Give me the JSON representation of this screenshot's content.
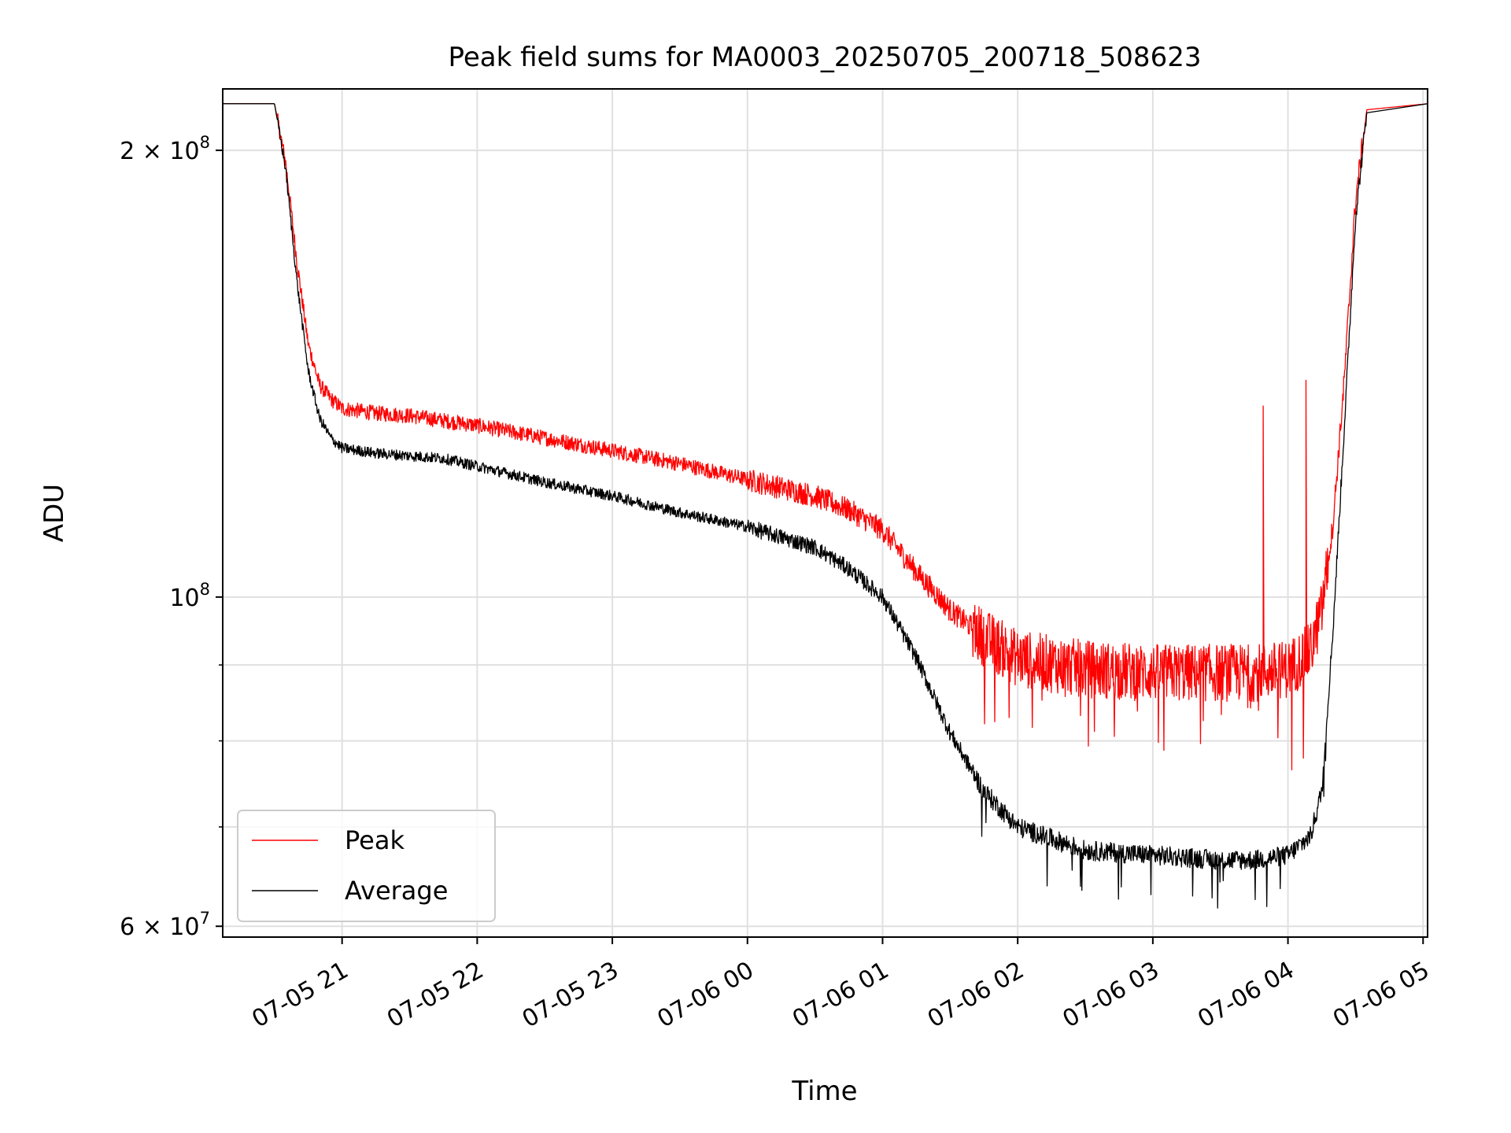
{
  "chart_data": {
    "type": "line",
    "title": "Peak field sums for MA0003_20250705_200718_508623",
    "xlabel": "Time",
    "ylabel": "ADU",
    "yscale": "log",
    "xlim": [
      "2025-07-05 20:07",
      "2025-07-06 05:02"
    ],
    "ylim": [
      59000000,
      220000000
    ],
    "x_ticks": [
      "07-05 21",
      "07-05 22",
      "07-05 23",
      "07-06 00",
      "07-06 01",
      "07-06 02",
      "07-06 03",
      "07-06 04",
      "07-06 05"
    ],
    "x_tick_times": [
      "2025-07-05 21:00",
      "2025-07-05 22:00",
      "2025-07-05 23:00",
      "2025-07-06 00:00",
      "2025-07-06 01:00",
      "2025-07-06 02:00",
      "2025-07-06 03:00",
      "2025-07-06 04:00",
      "2025-07-06 05:00"
    ],
    "y_major_ticks": [
      {
        "value": 60000000,
        "mantissa": "6",
        "exp": "7"
      },
      {
        "value": 100000000,
        "mantissa": "",
        "exp": "8"
      },
      {
        "value": 200000000,
        "mantissa": "2",
        "exp": "8"
      }
    ],
    "y_minor_ticks": [
      70000000,
      80000000,
      90000000
    ],
    "grid": true,
    "legend_position": "lower-left",
    "series": [
      {
        "name": "Peak",
        "color": "#ff0000",
        "x": [
          "2025-07-05 20:07",
          "2025-07-05 20:30",
          "2025-07-05 20:35",
          "2025-07-05 20:40",
          "2025-07-05 20:45",
          "2025-07-05 20:50",
          "2025-07-05 20:55",
          "2025-07-05 21:00",
          "2025-07-05 21:15",
          "2025-07-05 21:30",
          "2025-07-05 21:45",
          "2025-07-05 22:00",
          "2025-07-05 22:30",
          "2025-07-05 23:00",
          "2025-07-05 23:30",
          "2025-07-06 00:00",
          "2025-07-06 00:30",
          "2025-07-06 00:45",
          "2025-07-06 01:00",
          "2025-07-06 01:15",
          "2025-07-06 01:30",
          "2025-07-06 01:45",
          "2025-07-06 02:00",
          "2025-07-06 02:30",
          "2025-07-06 03:00",
          "2025-07-06 03:30",
          "2025-07-06 03:45",
          "2025-07-06 04:00",
          "2025-07-06 04:10",
          "2025-07-06 04:15",
          "2025-07-06 04:20",
          "2025-07-06 04:25",
          "2025-07-06 04:30",
          "2025-07-06 04:35",
          "2025-07-06 05:02"
        ],
        "y": [
          215000000,
          215000000,
          196000000,
          168000000,
          148000000,
          139000000,
          136000000,
          134000000,
          133000000,
          132500000,
          131500000,
          130500000,
          128000000,
          125500000,
          123000000,
          120000000,
          117000000,
          114500000,
          111000000,
          104000000,
          98000000,
          94000000,
          91000000,
          89500000,
          89000000,
          89000000,
          89000000,
          89500000,
          92000000,
          98000000,
          112000000,
          140000000,
          185000000,
          213000000,
          215000000
        ]
      },
      {
        "name": "Average",
        "color": "#000000",
        "x": [
          "2025-07-05 20:07",
          "2025-07-05 20:30",
          "2025-07-05 20:35",
          "2025-07-05 20:40",
          "2025-07-05 20:45",
          "2025-07-05 20:50",
          "2025-07-05 20:55",
          "2025-07-05 21:00",
          "2025-07-05 21:15",
          "2025-07-05 21:30",
          "2025-07-05 21:45",
          "2025-07-05 22:00",
          "2025-07-05 22:30",
          "2025-07-05 23:00",
          "2025-07-05 23:30",
          "2025-07-06 00:00",
          "2025-07-06 00:30",
          "2025-07-06 00:45",
          "2025-07-06 01:00",
          "2025-07-06 01:15",
          "2025-07-06 01:30",
          "2025-07-06 01:45",
          "2025-07-06 02:00",
          "2025-07-06 02:30",
          "2025-07-06 03:00",
          "2025-07-06 03:30",
          "2025-07-06 03:45",
          "2025-07-06 04:00",
          "2025-07-06 04:10",
          "2025-07-06 04:15",
          "2025-07-06 04:20",
          "2025-07-06 04:25",
          "2025-07-06 04:30",
          "2025-07-06 04:35",
          "2025-07-06 05:02"
        ],
        "y": [
          215000000,
          215000000,
          194000000,
          163000000,
          142000000,
          132000000,
          128000000,
          126000000,
          125000000,
          124500000,
          124000000,
          122500000,
          119500000,
          117000000,
          114000000,
          111500000,
          108000000,
          104500000,
          100000000,
          91000000,
          81000000,
          74000000,
          70000000,
          67500000,
          67000000,
          66500000,
          66500000,
          67000000,
          69000000,
          74000000,
          95000000,
          130000000,
          180000000,
          212000000,
          215000000
        ]
      }
    ]
  }
}
